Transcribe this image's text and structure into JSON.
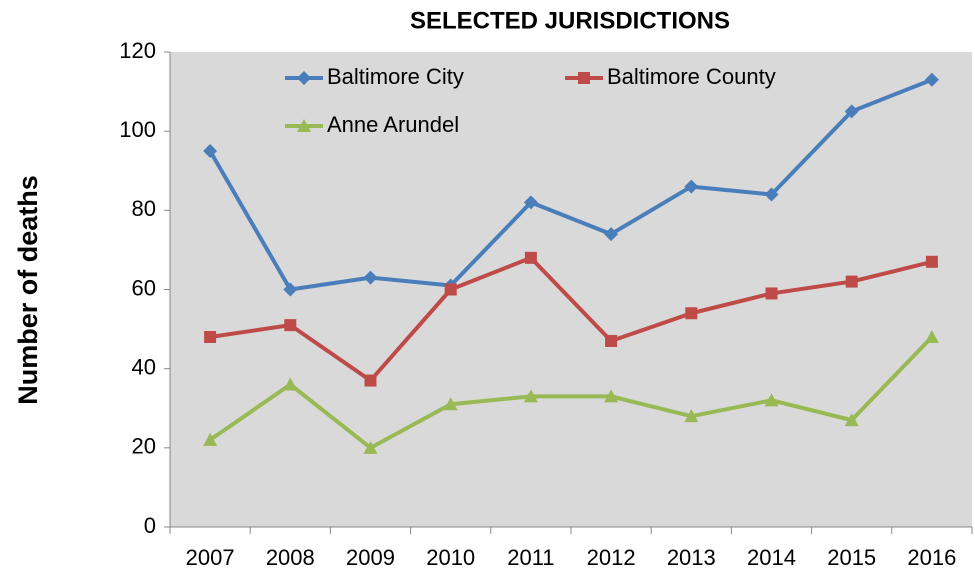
{
  "chart_data": {
    "type": "line",
    "title": "SELECTED JURISDICTIONS",
    "y_label": "Number of deaths",
    "categories": [
      "2007",
      "2008",
      "2009",
      "2010",
      "2011",
      "2012",
      "2013",
      "2014",
      "2015",
      "2016"
    ],
    "series": [
      {
        "name": "Baltimore City",
        "color": "#4a7ebb",
        "marker": "diamond",
        "values": [
          95,
          60,
          63,
          61,
          82,
          74,
          86,
          84,
          105,
          113
        ]
      },
      {
        "name": "Baltimore County",
        "color": "#be4b48",
        "marker": "square",
        "values": [
          48,
          51,
          37,
          60,
          68,
          47,
          54,
          59,
          62,
          67
        ]
      },
      {
        "name": "Anne Arundel",
        "color": "#98b954",
        "marker": "triangle",
        "values": [
          22,
          36,
          20,
          31,
          33,
          33,
          28,
          32,
          27,
          48
        ]
      }
    ],
    "ylim": [
      0,
      120
    ],
    "yticks": [
      0,
      20,
      40,
      60,
      80,
      100,
      120
    ],
    "grid": false,
    "legend": "top",
    "plot_background": "#d9d9d9"
  }
}
